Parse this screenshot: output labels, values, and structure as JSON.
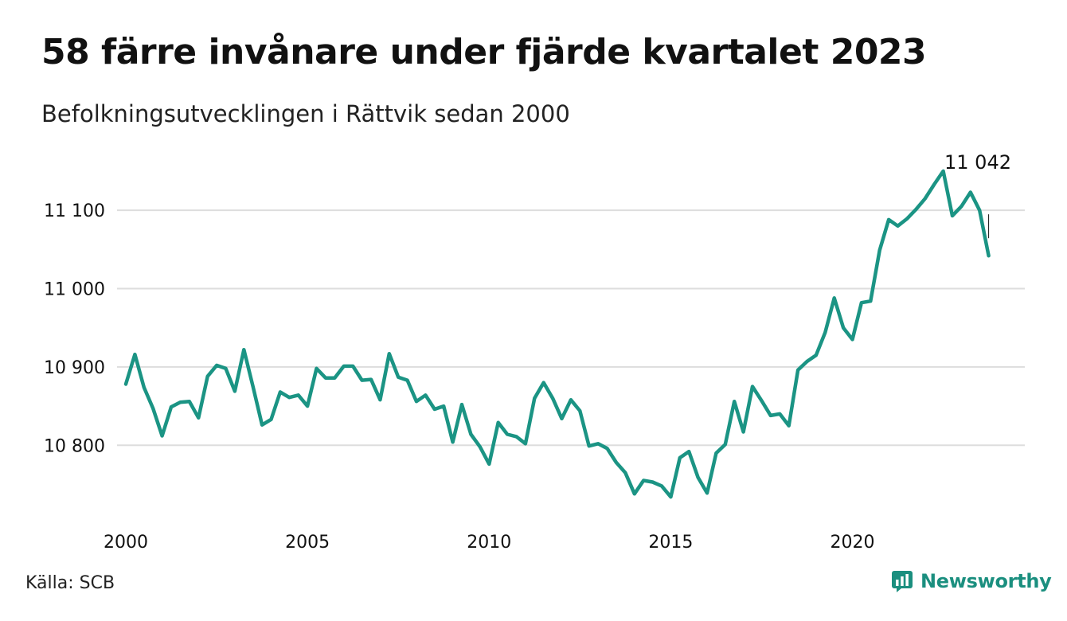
{
  "header": {
    "title": "58 färre invånare under fjärde kvartalet 2023",
    "subtitle": "Befolkningsutvecklingen i Rättvik sedan 2000"
  },
  "footer": {
    "source": "Källa: SCB",
    "brand": "Newsworthy"
  },
  "colors": {
    "line": "#1b9484",
    "grid": "#dddddd",
    "brand": "#1b8f7f"
  },
  "chart_data": {
    "type": "line",
    "title": "58 färre invånare under fjärde kvartalet 2023",
    "subtitle": "Befolkningsutvecklingen i Rättvik sedan 2000",
    "ylim": [
      10722,
      11155
    ],
    "xlim": [
      2000,
      2024
    ],
    "y_ticks": [
      10800,
      10900,
      11000,
      11100
    ],
    "y_tick_labels": [
      "10 800",
      "10 900",
      "11 000",
      "11 100"
    ],
    "x_ticks": [
      2000,
      2005,
      2010,
      2015,
      2020
    ],
    "x_tick_labels": [
      "2000",
      "2005",
      "2010",
      "2015",
      "2020"
    ],
    "grid": "horizontal",
    "end_label": "11 042",
    "series": [
      {
        "x": [
          2000.0,
          2000.25,
          2000.5,
          2000.75,
          2001.0,
          2001.25,
          2001.5,
          2001.75,
          2002.0,
          2002.25,
          2002.5,
          2002.75,
          2003.0,
          2003.25,
          2003.5,
          2003.75,
          2004.0,
          2004.25,
          2004.5,
          2004.75,
          2005.0,
          2005.25,
          2005.5,
          2005.75,
          2006.0,
          2006.25,
          2006.5,
          2006.75,
          2007.0,
          2007.25,
          2007.5,
          2007.75,
          2008.0,
          2008.25,
          2008.5,
          2008.75,
          2009.0,
          2009.25,
          2009.5,
          2009.75,
          2010.0,
          2010.25,
          2010.5,
          2010.75,
          2011.0,
          2011.25,
          2011.5,
          2011.75,
          2012.0,
          2012.25,
          2012.5,
          2012.75,
          2013.0,
          2013.25,
          2013.5,
          2013.75,
          2014.0,
          2014.25,
          2014.5,
          2014.75,
          2015.0,
          2015.25,
          2015.5,
          2015.75,
          2016.0,
          2016.25,
          2016.5,
          2016.75,
          2017.0,
          2017.25,
          2017.5,
          2017.75,
          2018.0,
          2018.25,
          2018.5,
          2018.75,
          2019.0,
          2019.25,
          2019.5,
          2019.75,
          2020.0,
          2020.25,
          2020.5,
          2020.75,
          2021.0,
          2021.25,
          2021.5,
          2021.75,
          2022.0,
          2022.25,
          2022.5,
          2022.75,
          2023.0,
          2023.25,
          2023.5,
          2023.75
        ],
        "values": [
          10878,
          10916,
          10874,
          10847,
          10812,
          10849,
          10855,
          10856,
          10835,
          10888,
          10902,
          10898,
          10869,
          10922,
          10875,
          10826,
          10833,
          10868,
          10861,
          10864,
          10850,
          10898,
          10886,
          10886,
          10901,
          10901,
          10883,
          10884,
          10858,
          10917,
          10887,
          10883,
          10856,
          10864,
          10846,
          10850,
          10804,
          10852,
          10814,
          10798,
          10776,
          10829,
          10814,
          10811,
          10802,
          10860,
          10880,
          10860,
          10834,
          10858,
          10844,
          10799,
          10802,
          10796,
          10778,
          10765,
          10738,
          10755,
          10753,
          10748,
          10734,
          10784,
          10792,
          10759,
          10739,
          10790,
          10801,
          10856,
          10817,
          10875,
          10857,
          10838,
          10840,
          10825,
          10896,
          10907,
          10915,
          10944,
          10988,
          10950,
          10935,
          10982,
          10984,
          11049,
          11088,
          11080,
          11089,
          11101,
          11115,
          11133,
          11150,
          11093,
          11105,
          11123,
          11100,
          11042
        ]
      }
    ]
  }
}
